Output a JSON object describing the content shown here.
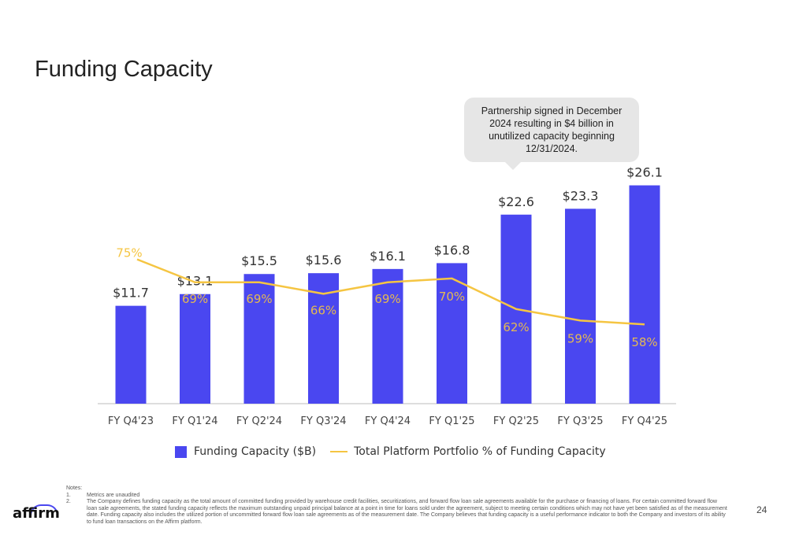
{
  "title": "Funding Capacity",
  "callout": "Partnership signed in December 2024 resulting in $4 billion in unutilized capacity beginning 12/31/2024.",
  "chart_data": {
    "type": "bar",
    "categories": [
      "FY Q4'23",
      "FY Q1'24",
      "FY Q2'24",
      "FY Q3'24",
      "FY Q4'24",
      "FY Q1'25",
      "FY Q2'25",
      "FY Q3'25",
      "FY Q4'25"
    ],
    "series": [
      {
        "name": "Funding Capacity ($B)",
        "type": "bar",
        "color": "#4a47f0",
        "values": [
          11.7,
          13.1,
          15.5,
          15.6,
          16.1,
          16.8,
          22.6,
          23.3,
          26.1
        ],
        "labels": [
          "$11.7",
          "$13.1",
          "$15.5",
          "$15.6",
          "$16.1",
          "$16.8",
          "$22.6",
          "$23.3",
          "$26.1"
        ]
      },
      {
        "name": "Total Platform Portfolio % of Funding Capacity",
        "type": "line",
        "color": "#f5c542",
        "values": [
          75,
          69,
          69,
          66,
          69,
          70,
          62,
          59,
          58
        ],
        "labels": [
          "75%",
          "69%",
          "69%",
          "66%",
          "69%",
          "70%",
          "62%",
          "59%",
          "58%"
        ]
      }
    ],
    "title": "Funding Capacity",
    "legend_position": "bottom",
    "grid": false
  },
  "legend": {
    "bar_label": "Funding Capacity ($B)",
    "line_label": "Total Platform Portfolio % of Funding Capacity"
  },
  "notes": {
    "header": "Notes:",
    "items": [
      {
        "num": "1.",
        "text": "Metrics are unaudited"
      },
      {
        "num": "2.",
        "text": "The Company defines funding capacity as the total amount of committed funding provided by warehouse credit facilities, securitizations, and forward flow loan sale agreements available for the purchase or financing of loans. For certain committed forward flow loan sale agreements, the stated funding capacity reflects the maximum outstanding unpaid principal balance at a point in time for loans sold under the agreement, subject to meeting certain conditions which may not have yet been satisfied as of the measurement date. Funding capacity also includes the utilized portion of uncommitted forward flow loan sale agreements as of the measurement date. The Company believes that funding capacity is a useful performance indicator to both the Company and investors of its ability to fund loan transactions on the Affirm platform."
      }
    ]
  },
  "logo": "affirm",
  "page_number": "24"
}
